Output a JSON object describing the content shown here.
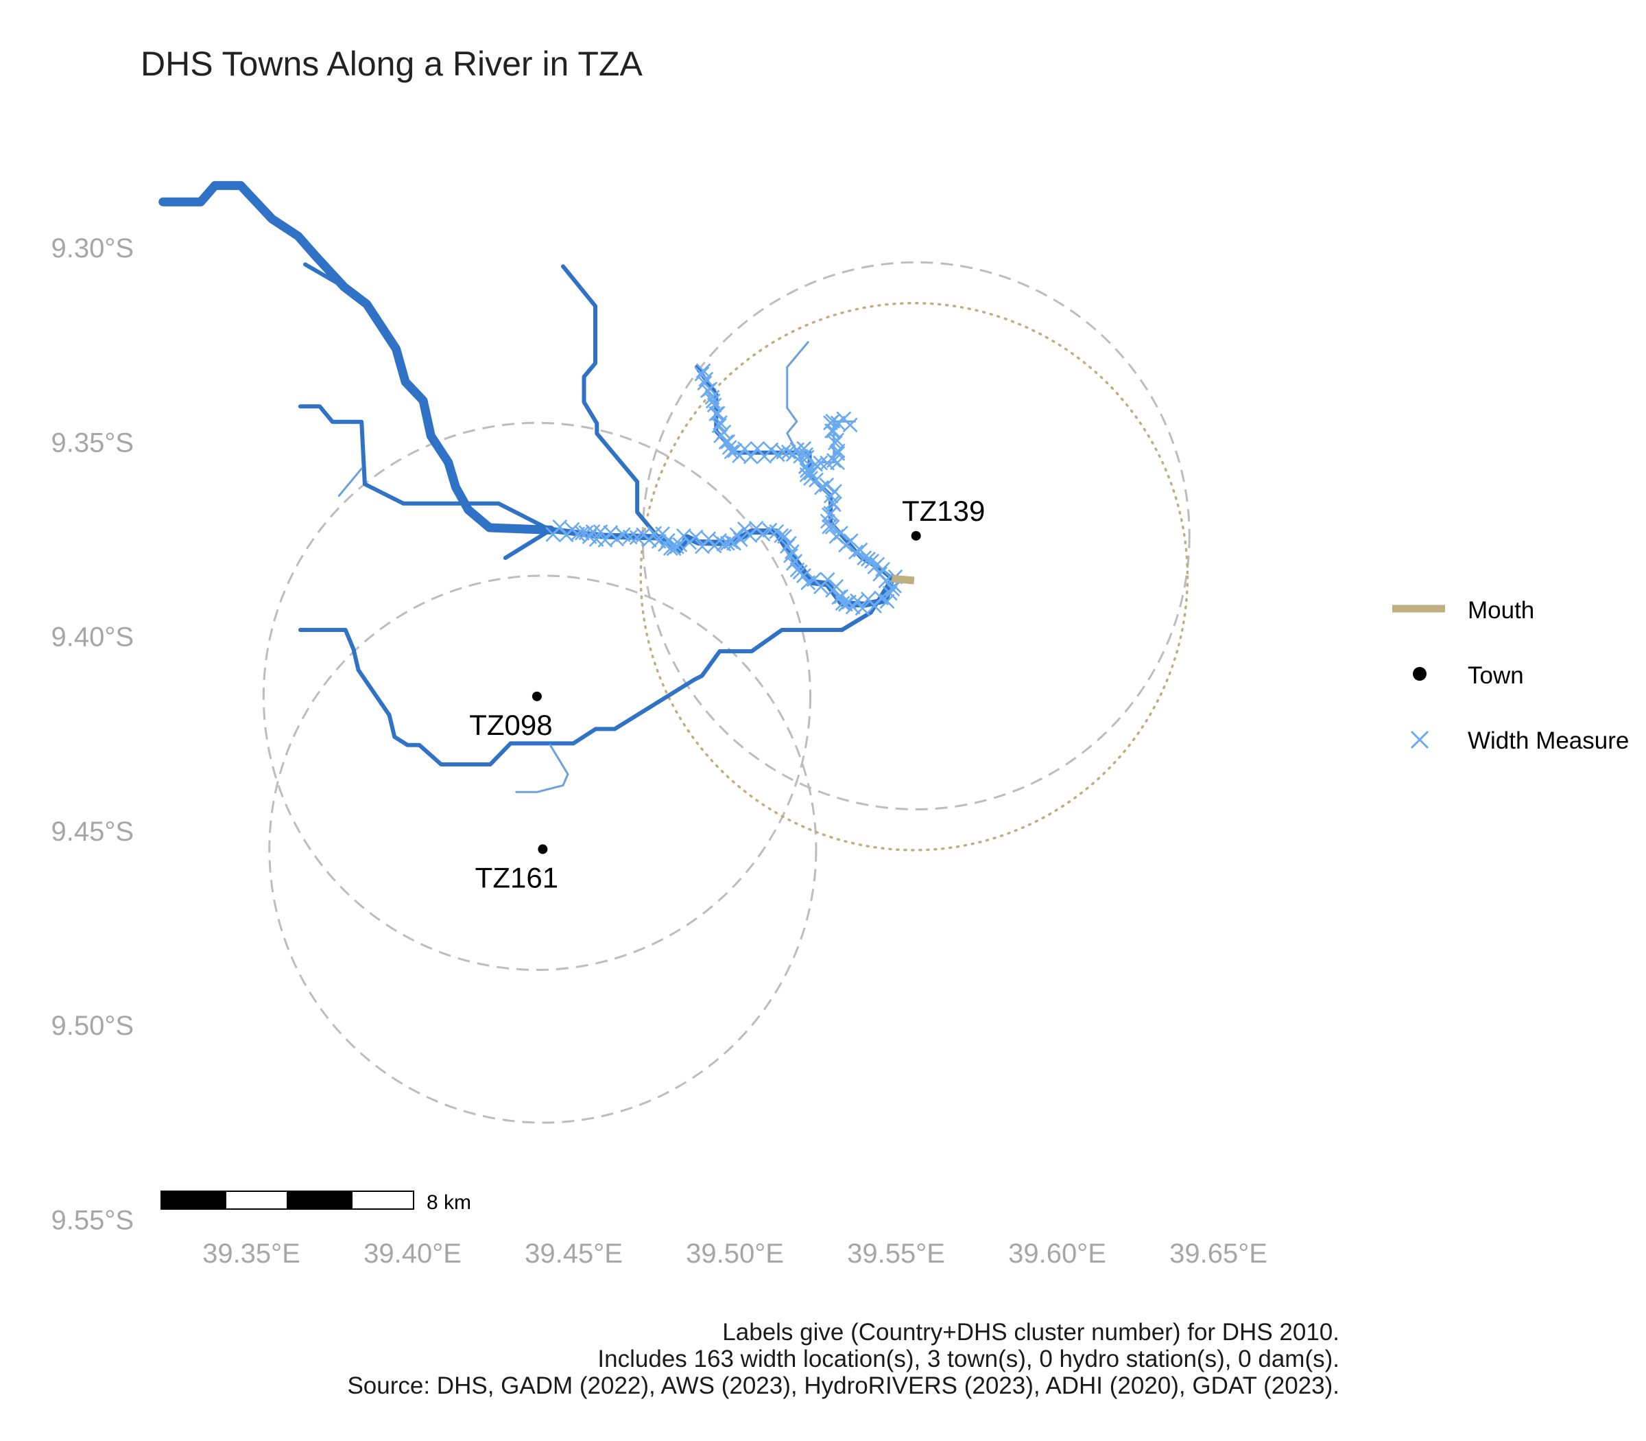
{
  "title": "DHS Towns Along a River in TZA",
  "colors": {
    "river_main": "#2f72c6",
    "river_light": "#6ea0dc",
    "width_measure": "#6aaaf0",
    "mouth": "#bfae7f",
    "town": "#000000",
    "buffer": "#bdbdbd"
  },
  "chart_data": {
    "type": "map",
    "grid": false,
    "legend_position": "right",
    "xlim": [
      39.3199,
      39.6635
    ],
    "ylim": [
      -9.5508,
      -9.2767
    ],
    "x_ticks": [
      {
        "value": 39.35,
        "label": "39.35°E"
      },
      {
        "value": 39.4,
        "label": "39.40°E"
      },
      {
        "value": 39.45,
        "label": "39.45°E"
      },
      {
        "value": 39.5,
        "label": "39.50°E"
      },
      {
        "value": 39.55,
        "label": "39.55°E"
      },
      {
        "value": 39.6,
        "label": "39.60°E"
      },
      {
        "value": 39.65,
        "label": "39.65°E"
      }
    ],
    "y_ticks": [
      {
        "value": -9.3,
        "label": "9.30°S"
      },
      {
        "value": -9.35,
        "label": "9.35°S"
      },
      {
        "value": -9.4,
        "label": "9.40°S"
      },
      {
        "value": -9.45,
        "label": "9.45°S"
      },
      {
        "value": -9.5,
        "label": "9.50°S"
      },
      {
        "value": -9.55,
        "label": "9.55°S"
      }
    ],
    "towns": [
      {
        "name": "TZ139",
        "lon": 39.5562,
        "lat": -9.3741,
        "label_side": "above"
      },
      {
        "name": "TZ098",
        "lon": 39.4386,
        "lat": -9.4154,
        "label_side": "below"
      },
      {
        "name": "TZ161",
        "lon": 39.4404,
        "lat": -9.4547,
        "label_side": "below"
      }
    ],
    "mouth": {
      "lon_from": 39.5487,
      "lat_from": -9.3851,
      "lon_to": 39.5556,
      "lat_to": -9.3856
    },
    "buffers": [
      {
        "style": "dashed",
        "lon": 39.5562,
        "lat": -9.3741,
        "radius_deg": 0.0848
      },
      {
        "style": "dashed",
        "lon": 39.4386,
        "lat": -9.4154,
        "radius_deg": 0.0848
      },
      {
        "style": "dashed",
        "lon": 39.4404,
        "lat": -9.4547,
        "radius_deg": 0.0848
      },
      {
        "style": "dotted",
        "lon": 39.5556,
        "lat": -9.3846,
        "radius_deg": 0.0848
      }
    ],
    "rivers": [
      {
        "weight": 3,
        "coords": [
          [
            39.3226,
            -9.2882
          ],
          [
            39.3343,
            -9.2882
          ],
          [
            39.3387,
            -9.284
          ],
          [
            39.3467,
            -9.284
          ],
          [
            39.3564,
            -9.2926
          ],
          [
            39.3645,
            -9.297
          ],
          [
            39.3698,
            -9.302
          ],
          [
            39.3788,
            -9.3101
          ],
          [
            39.3858,
            -9.3145
          ],
          [
            39.3949,
            -9.326
          ],
          [
            39.3978,
            -9.3345
          ],
          [
            39.4033,
            -9.3393
          ],
          [
            39.4057,
            -9.3484
          ],
          [
            39.4111,
            -9.3552
          ],
          [
            39.4134,
            -9.3616
          ],
          [
            39.4173,
            -9.3674
          ],
          [
            39.4239,
            -9.372
          ],
          [
            39.4428,
            -9.3726
          ]
        ]
      },
      {
        "weight": 2,
        "coords": [
          [
            39.4428,
            -9.3726
          ],
          [
            39.4585,
            -9.3741
          ],
          [
            39.4767,
            -9.3745
          ],
          [
            39.4827,
            -9.3778
          ],
          [
            39.4852,
            -9.3745
          ],
          [
            39.4887,
            -9.3758
          ],
          [
            39.4987,
            -9.376
          ],
          [
            39.5052,
            -9.373
          ],
          [
            39.5127,
            -9.373
          ],
          [
            39.5167,
            -9.378
          ],
          [
            39.5237,
            -9.386
          ],
          [
            39.5287,
            -9.3865
          ],
          [
            39.5332,
            -9.3915
          ],
          [
            39.5402,
            -9.3918
          ],
          [
            39.5467,
            -9.3907
          ],
          [
            39.5487,
            -9.3851
          ]
        ]
      },
      {
        "weight": 1,
        "coords": [
          [
            39.3652,
            -9.3983
          ],
          [
            39.3792,
            -9.3983
          ],
          [
            39.3817,
            -9.4033
          ],
          [
            39.3832,
            -9.4086
          ],
          [
            39.3928,
            -9.4202
          ],
          [
            39.3944,
            -9.4258
          ],
          [
            39.3984,
            -9.4279
          ],
          [
            39.4021,
            -9.4279
          ],
          [
            39.4089,
            -9.4329
          ],
          [
            39.4241,
            -9.4329
          ],
          [
            39.4304,
            -9.4275
          ],
          [
            39.4499,
            -9.4275
          ],
          [
            39.4568,
            -9.4238
          ],
          [
            39.4627,
            -9.4238
          ],
          [
            39.4874,
            -9.4111
          ],
          [
            39.4898,
            -9.4101
          ],
          [
            39.4953,
            -9.4038
          ],
          [
            39.5052,
            -9.4038
          ],
          [
            39.5146,
            -9.3983
          ],
          [
            39.5332,
            -9.3983
          ],
          [
            39.5422,
            -9.3938
          ],
          [
            39.5487,
            -9.3851
          ]
        ]
      },
      {
        "weight": 1,
        "coords": [
          [
            39.3652,
            -9.3408
          ],
          [
            39.3712,
            -9.3408
          ],
          [
            39.3752,
            -9.3448
          ],
          [
            39.3842,
            -9.3448
          ],
          [
            39.3852,
            -9.3608
          ],
          [
            39.3972,
            -9.3658
          ],
          [
            39.4267,
            -9.3658
          ],
          [
            39.4428,
            -9.3726
          ]
        ]
      },
      {
        "weight": 1,
        "coords": [
          [
            39.4428,
            -9.3726
          ],
          [
            39.4288,
            -9.3798
          ]
        ]
      },
      {
        "weight": 1,
        "coords": [
          [
            39.3667,
            -9.3043
          ],
          [
            39.3788,
            -9.3101
          ]
        ]
      },
      {
        "weight": 1,
        "coords": [
          [
            39.4467,
            -9.3048
          ],
          [
            39.4567,
            -9.315
          ],
          [
            39.4567,
            -9.3297
          ],
          [
            39.4532,
            -9.3332
          ],
          [
            39.4532,
            -9.3397
          ],
          [
            39.4572,
            -9.3452
          ],
          [
            39.4572,
            -9.3478
          ],
          [
            39.4697,
            -9.3602
          ],
          [
            39.4697,
            -9.368
          ],
          [
            39.4777,
            -9.376
          ]
        ]
      },
      {
        "weight": 1,
        "coords": [
          [
            39.4882,
            -9.3307
          ],
          [
            39.4942,
            -9.3377
          ],
          [
            39.4942,
            -9.3472
          ],
          [
            39.5002,
            -9.3527
          ],
          [
            39.5232,
            -9.3527
          ],
          [
            39.5232,
            -9.3587
          ],
          [
            39.5297,
            -9.3637
          ],
          [
            39.5297,
            -9.3707
          ],
          [
            39.5392,
            -9.3797
          ],
          [
            39.5452,
            -9.3827
          ],
          [
            39.5487,
            -9.3851
          ]
        ]
      },
      {
        "weight": 0,
        "coords": [
          [
            39.5232,
            -9.3587
          ],
          [
            39.5267,
            -9.3552
          ],
          [
            39.5307,
            -9.3552
          ],
          [
            39.5307,
            -9.3447
          ],
          [
            39.5372,
            -9.3447
          ]
        ]
      },
      {
        "weight": 0,
        "coords": [
          [
            39.5232,
            -9.3587
          ],
          [
            39.5162,
            -9.3477
          ],
          [
            39.5192,
            -9.3447
          ],
          [
            39.5162,
            -9.3412
          ],
          [
            39.5162,
            -9.3307
          ],
          [
            39.5227,
            -9.3243
          ]
        ]
      },
      {
        "weight": 0,
        "coords": [
          [
            39.3842,
            -9.3568
          ],
          [
            39.3802,
            -9.3608
          ],
          [
            39.3772,
            -9.3638
          ]
        ]
      },
      {
        "weight": 0,
        "coords": [
          [
            39.4427,
            -9.4279
          ],
          [
            39.4482,
            -9.4354
          ],
          [
            39.4467,
            -9.4383
          ],
          [
            39.4387,
            -9.44
          ],
          [
            39.4322,
            -9.44
          ]
        ]
      }
    ],
    "width_measures": {
      "count": 163,
      "on_river_index": [
        1,
        7,
        8
      ]
    },
    "scale_bar": {
      "label": "8 km",
      "segments": 4
    }
  },
  "legend": [
    {
      "key": "mouth",
      "label": "Mouth"
    },
    {
      "key": "town",
      "label": "Town"
    },
    {
      "key": "width",
      "label": "Width Measure"
    }
  ],
  "caption": [
    "Labels give (Country+DHS cluster number) for DHS 2010.",
    "Includes 163 width location(s), 3 town(s), 0 hydro station(s), 0 dam(s).",
    "Source: DHS, GADM (2022), AWS (2023), HydroRIVERS (2023), ADHI (2020), GDAT (2023)."
  ]
}
